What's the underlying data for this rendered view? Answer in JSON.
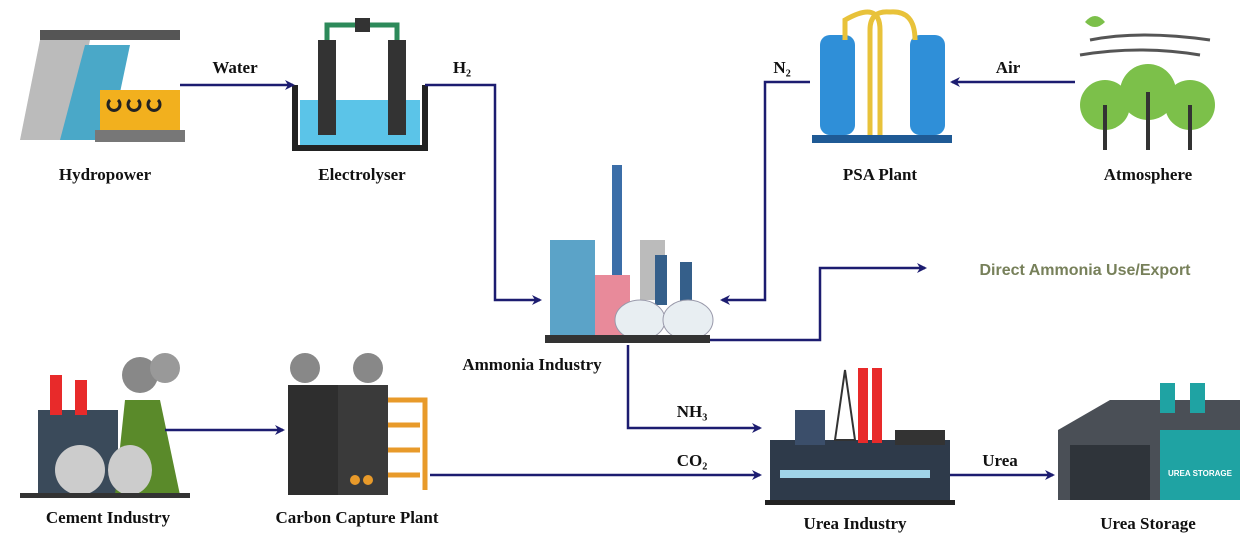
{
  "nodes": [
    {
      "label": "Hydropower"
    },
    {
      "label": "Electrolyser"
    },
    {
      "label": "PSA Plant"
    },
    {
      "label": "Atmosphere"
    },
    {
      "label": "Ammonia Industry"
    },
    {
      "label": "Direct Ammonia Use/Export"
    },
    {
      "label": "Cement Industry"
    },
    {
      "label": "Carbon Capture Plant"
    },
    {
      "label": "Urea Industry"
    },
    {
      "label": "Urea Storage",
      "sign": "UREA STORAGE"
    }
  ],
  "edges": [
    {
      "label": "Water"
    },
    {
      "label": "H₂"
    },
    {
      "label": "N₂"
    },
    {
      "label": "Air"
    },
    {
      "label": "NH₃"
    },
    {
      "label": "CO₂"
    },
    {
      "label": "Urea"
    }
  ]
}
